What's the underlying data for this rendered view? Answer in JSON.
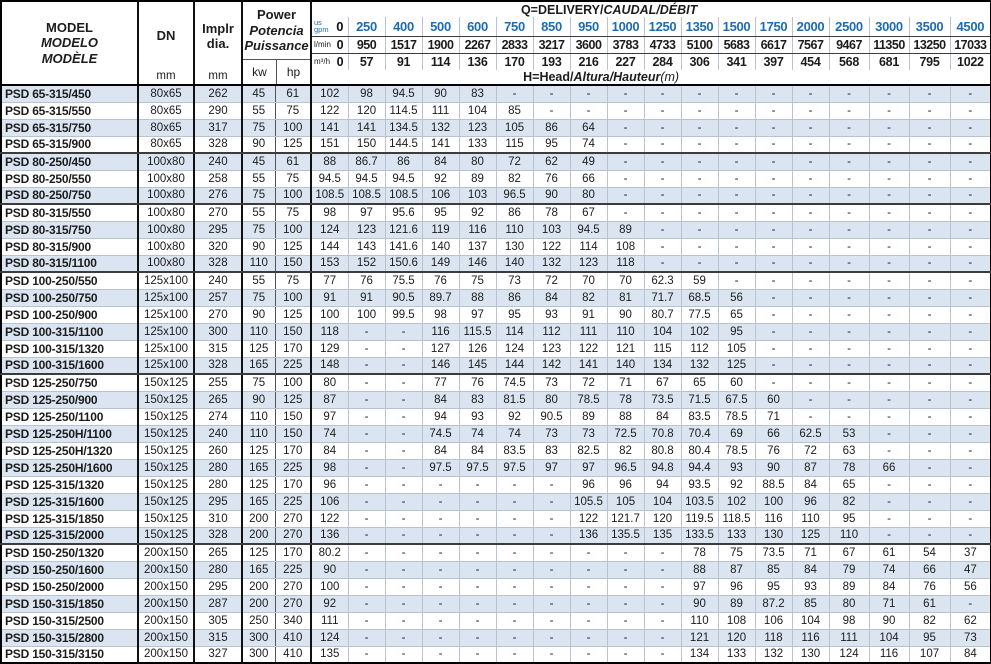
{
  "header": {
    "q_title": {
      "bold": "Q=DELIVERY/",
      "bold_italic": "CAUDAL/DÉBIT"
    },
    "h_title": {
      "bold": "H=Head/",
      "bold_italic": "Altura/Hauteur",
      "suffix": "(m)"
    },
    "model_col": {
      "line1": "MODEL",
      "line2": "MODELO",
      "line3": "MODÈLE"
    },
    "dn_col": {
      "label": "DN",
      "unit": "mm"
    },
    "impeller_col": {
      "line1": "Implr",
      "line2": "dia.",
      "unit": "mm"
    },
    "power_col": {
      "line1": "Power",
      "line2": "Potencia",
      "line3": "Puissance",
      "unit_kw": "kw",
      "unit_hp": "hp"
    },
    "flow_rows": [
      {
        "id": "gpm",
        "unit_lines": [
          "us",
          "gpm"
        ],
        "zero": "0",
        "values": [
          "250",
          "400",
          "500",
          "600",
          "750",
          "850",
          "950",
          "1000",
          "1250",
          "1350",
          "1500",
          "1750",
          "2000",
          "2500",
          "3000",
          "3500",
          "4500"
        ]
      },
      {
        "id": "lmin",
        "unit_lines": [
          "l/min"
        ],
        "zero": "0",
        "values": [
          "950",
          "1517",
          "1900",
          "2267",
          "2833",
          "3217",
          "3600",
          "3783",
          "4733",
          "5100",
          "5683",
          "6617",
          "7567",
          "9467",
          "11350",
          "13250",
          "17033"
        ]
      },
      {
        "id": "m3h",
        "unit_lines": [
          "m³/h"
        ],
        "zero": "0",
        "values": [
          "57",
          "91",
          "114",
          "136",
          "170",
          "193",
          "216",
          "227",
          "284",
          "306",
          "341",
          "397",
          "454",
          "568",
          "681",
          "795",
          "1022"
        ]
      }
    ]
  },
  "rows": [
    {
      "model": "PSD 65-315/450",
      "dn": "80x65",
      "dia": "262",
      "kw": "45",
      "hp": "61",
      "head": [
        "102",
        "98",
        "94.5",
        "90",
        "83",
        "-",
        "-",
        "-",
        "-",
        "-",
        "-",
        "-",
        "-",
        "-",
        "-",
        "-",
        "-",
        "-"
      ]
    },
    {
      "model": "PSD 65-315/550",
      "dn": "80x65",
      "dia": "290",
      "kw": "55",
      "hp": "75",
      "head": [
        "122",
        "120",
        "114.5",
        "111",
        "104",
        "85",
        "-",
        "-",
        "-",
        "-",
        "-",
        "-",
        "-",
        "-",
        "-",
        "-",
        "-",
        "-"
      ]
    },
    {
      "model": "PSD 65-315/750",
      "dn": "80x65",
      "dia": "317",
      "kw": "75",
      "hp": "100",
      "head": [
        "141",
        "141",
        "134.5",
        "132",
        "123",
        "105",
        "86",
        "64",
        "-",
        "-",
        "-",
        "-",
        "-",
        "-",
        "-",
        "-",
        "-",
        "-"
      ]
    },
    {
      "model": "PSD 65-315/900",
      "dn": "80x65",
      "dia": "328",
      "kw": "90",
      "hp": "125",
      "head": [
        "151",
        "150",
        "144.5",
        "141",
        "133",
        "115",
        "95",
        "74",
        "-",
        "-",
        "-",
        "-",
        "-",
        "-",
        "-",
        "-",
        "-",
        "-"
      ]
    },
    {
      "model": "PSD 80-250/450",
      "dn": "100x80",
      "dia": "240",
      "kw": "45",
      "hp": "61",
      "head": [
        "88",
        "86.7",
        "86",
        "84",
        "80",
        "72",
        "62",
        "49",
        "-",
        "-",
        "-",
        "-",
        "-",
        "-",
        "-",
        "-",
        "-",
        "-"
      ]
    },
    {
      "model": "PSD 80-250/550",
      "dn": "100x80",
      "dia": "258",
      "kw": "55",
      "hp": "75",
      "head": [
        "94.5",
        "94.5",
        "94.5",
        "92",
        "89",
        "82",
        "76",
        "66",
        "-",
        "-",
        "-",
        "-",
        "-",
        "-",
        "-",
        "-",
        "-",
        "-"
      ]
    },
    {
      "model": "PSD 80-250/750",
      "dn": "100x80",
      "dia": "276",
      "kw": "75",
      "hp": "100",
      "head": [
        "108.5",
        "108.5",
        "108.5",
        "106",
        "103",
        "96.5",
        "90",
        "80",
        "-",
        "-",
        "-",
        "-",
        "-",
        "-",
        "-",
        "-",
        "-",
        "-"
      ]
    },
    {
      "model": "PSD 80-315/550",
      "dn": "100x80",
      "dia": "270",
      "kw": "55",
      "hp": "75",
      "head": [
        "98",
        "97",
        "95.6",
        "95",
        "92",
        "86",
        "78",
        "67",
        "-",
        "-",
        "-",
        "-",
        "-",
        "-",
        "-",
        "-",
        "-",
        "-"
      ]
    },
    {
      "model": "PSD 80-315/750",
      "dn": "100x80",
      "dia": "295",
      "kw": "75",
      "hp": "100",
      "head": [
        "124",
        "123",
        "121.6",
        "119",
        "116",
        "110",
        "103",
        "94.5",
        "89",
        "-",
        "-",
        "-",
        "-",
        "-",
        "-",
        "-",
        "-",
        "-"
      ]
    },
    {
      "model": "PSD 80-315/900",
      "dn": "100x80",
      "dia": "320",
      "kw": "90",
      "hp": "125",
      "head": [
        "144",
        "143",
        "141.6",
        "140",
        "137",
        "130",
        "122",
        "114",
        "108",
        "-",
        "-",
        "-",
        "-",
        "-",
        "-",
        "-",
        "-",
        "-"
      ]
    },
    {
      "model": "PSD 80-315/1100",
      "dn": "100x80",
      "dia": "328",
      "kw": "110",
      "hp": "150",
      "head": [
        "153",
        "152",
        "150.6",
        "149",
        "146",
        "140",
        "132",
        "123",
        "118",
        "-",
        "-",
        "-",
        "-",
        "-",
        "-",
        "-",
        "-",
        "-"
      ]
    },
    {
      "model": "PSD 100-250/550",
      "dn": "125x100",
      "dia": "240",
      "kw": "55",
      "hp": "75",
      "head": [
        "77",
        "76",
        "75.5",
        "76",
        "75",
        "73",
        "72",
        "70",
        "70",
        "62.3",
        "59",
        "-",
        "-",
        "-",
        "-",
        "-",
        "-",
        "-"
      ]
    },
    {
      "model": "PSD 100-250/750",
      "dn": "125x100",
      "dia": "257",
      "kw": "75",
      "hp": "100",
      "head": [
        "91",
        "91",
        "90.5",
        "89.7",
        "88",
        "86",
        "84",
        "82",
        "81",
        "71.7",
        "68.5",
        "56",
        "-",
        "-",
        "-",
        "-",
        "-",
        "-"
      ]
    },
    {
      "model": "PSD 100-250/900",
      "dn": "125x100",
      "dia": "270",
      "kw": "90",
      "hp": "125",
      "head": [
        "100",
        "100",
        "99.5",
        "98",
        "97",
        "95",
        "93",
        "91",
        "90",
        "80.7",
        "77.5",
        "65",
        "-",
        "-",
        "-",
        "-",
        "-",
        "-"
      ]
    },
    {
      "model": "PSD 100-315/1100",
      "dn": "125x100",
      "dia": "300",
      "kw": "110",
      "hp": "150",
      "head": [
        "118",
        "-",
        "-",
        "116",
        "115.5",
        "114",
        "112",
        "111",
        "110",
        "104",
        "102",
        "95",
        "-",
        "-",
        "-",
        "-",
        "-",
        "-"
      ]
    },
    {
      "model": "PSD 100-315/1320",
      "dn": "125x100",
      "dia": "315",
      "kw": "125",
      "hp": "170",
      "head": [
        "129",
        "-",
        "-",
        "127",
        "126",
        "124",
        "123",
        "122",
        "121",
        "115",
        "112",
        "105",
        "-",
        "-",
        "-",
        "-",
        "-",
        "-"
      ]
    },
    {
      "model": "PSD 100-315/1600",
      "dn": "125x100",
      "dia": "328",
      "kw": "165",
      "hp": "225",
      "head": [
        "148",
        "-",
        "-",
        "146",
        "145",
        "144",
        "142",
        "141",
        "140",
        "134",
        "132",
        "125",
        "-",
        "-",
        "-",
        "-",
        "-",
        "-"
      ]
    },
    {
      "model": "PSD 125-250/750",
      "dn": "150x125",
      "dia": "255",
      "kw": "75",
      "hp": "100",
      "head": [
        "80",
        "-",
        "-",
        "77",
        "76",
        "74.5",
        "73",
        "72",
        "71",
        "67",
        "65",
        "60",
        "-",
        "-",
        "-",
        "-",
        "-",
        "-"
      ]
    },
    {
      "model": "PSD 125-250/900",
      "dn": "150x125",
      "dia": "265",
      "kw": "90",
      "hp": "125",
      "head": [
        "87",
        "-",
        "-",
        "84",
        "83",
        "81.5",
        "80",
        "78.5",
        "78",
        "73.5",
        "71.5",
        "67.5",
        "60",
        "-",
        "-",
        "-",
        "-",
        "-"
      ]
    },
    {
      "model": "PSD 125-250/1100",
      "dn": "150x125",
      "dia": "274",
      "kw": "110",
      "hp": "150",
      "head": [
        "97",
        "-",
        "-",
        "94",
        "93",
        "92",
        "90.5",
        "89",
        "88",
        "84",
        "83.5",
        "78.5",
        "71",
        "-",
        "-",
        "-",
        "-",
        "-"
      ]
    },
    {
      "model": "PSD 125-250H/1100",
      "dn": "150x125",
      "dia": "240",
      "kw": "110",
      "hp": "150",
      "head": [
        "74",
        "-",
        "-",
        "74.5",
        "74",
        "74",
        "73",
        "73",
        "72.5",
        "70.8",
        "70.4",
        "69",
        "66",
        "62.5",
        "53",
        "-",
        "-",
        "-"
      ]
    },
    {
      "model": "PSD 125-250H/1320",
      "dn": "150x125",
      "dia": "260",
      "kw": "125",
      "hp": "170",
      "head": [
        "84",
        "-",
        "-",
        "84",
        "84",
        "83.5",
        "83",
        "82.5",
        "82",
        "80.8",
        "80.4",
        "78.5",
        "76",
        "72",
        "63",
        "-",
        "-",
        "-"
      ]
    },
    {
      "model": "PSD 125-250H/1600",
      "dn": "150x125",
      "dia": "280",
      "kw": "165",
      "hp": "225",
      "head": [
        "98",
        "-",
        "-",
        "97.5",
        "97.5",
        "97.5",
        "97",
        "97",
        "96.5",
        "94.8",
        "94.4",
        "93",
        "90",
        "87",
        "78",
        "66",
        "-",
        "-"
      ]
    },
    {
      "model": "PSD 125-315/1320",
      "dn": "150x125",
      "dia": "280",
      "kw": "125",
      "hp": "170",
      "head": [
        "96",
        "-",
        "-",
        "-",
        "-",
        "-",
        "-",
        "96",
        "96",
        "94",
        "93.5",
        "92",
        "88.5",
        "84",
        "65",
        "-",
        "-",
        "-"
      ]
    },
    {
      "model": "PSD 125-315/1600",
      "dn": "150x125",
      "dia": "295",
      "kw": "165",
      "hp": "225",
      "head": [
        "106",
        "-",
        "-",
        "-",
        "-",
        "-",
        "-",
        "105.5",
        "105",
        "104",
        "103.5",
        "102",
        "100",
        "96",
        "82",
        "-",
        "-",
        "-"
      ]
    },
    {
      "model": "PSD 125-315/1850",
      "dn": "150x125",
      "dia": "310",
      "kw": "200",
      "hp": "270",
      "head": [
        "122",
        "-",
        "-",
        "-",
        "-",
        "-",
        "-",
        "122",
        "121.7",
        "120",
        "119.5",
        "118.5",
        "116",
        "110",
        "95",
        "-",
        "-",
        "-"
      ]
    },
    {
      "model": "PSD 125-315/2000",
      "dn": "150x125",
      "dia": "328",
      "kw": "200",
      "hp": "270",
      "head": [
        "136",
        "-",
        "-",
        "-",
        "-",
        "-",
        "-",
        "136",
        "135.5",
        "135",
        "133.5",
        "133",
        "130",
        "125",
        "110",
        "-",
        "-",
        "-"
      ]
    },
    {
      "model": "PSD 150-250/1320",
      "dn": "200x150",
      "dia": "265",
      "kw": "125",
      "hp": "170",
      "head": [
        "80.2",
        "-",
        "-",
        "-",
        "-",
        "-",
        "-",
        "-",
        "-",
        "-",
        "78",
        "75",
        "73.5",
        "71",
        "67",
        "61",
        "54",
        "37"
      ]
    },
    {
      "model": "PSD 150-250/1600",
      "dn": "200x150",
      "dia": "280",
      "kw": "165",
      "hp": "225",
      "head": [
        "90",
        "-",
        "-",
        "-",
        "-",
        "-",
        "-",
        "-",
        "-",
        "-",
        "88",
        "87",
        "85",
        "84",
        "79",
        "74",
        "66",
        "47"
      ]
    },
    {
      "model": "PSD 150-250/2000",
      "dn": "200x150",
      "dia": "295",
      "kw": "200",
      "hp": "270",
      "head": [
        "100",
        "-",
        "-",
        "-",
        "-",
        "-",
        "-",
        "-",
        "-",
        "-",
        "97",
        "96",
        "95",
        "93",
        "89",
        "84",
        "76",
        "56"
      ]
    },
    {
      "model": "PSD 150-315/1850",
      "dn": "200x150",
      "dia": "287",
      "kw": "200",
      "hp": "270",
      "head": [
        "92",
        "-",
        "-",
        "-",
        "-",
        "-",
        "-",
        "-",
        "-",
        "-",
        "90",
        "89",
        "87.2",
        "85",
        "80",
        "71",
        "61",
        "-"
      ]
    },
    {
      "model": "PSD 150-315/2500",
      "dn": "200x150",
      "dia": "305",
      "kw": "250",
      "hp": "340",
      "head": [
        "111",
        "-",
        "-",
        "-",
        "-",
        "-",
        "-",
        "-",
        "-",
        "-",
        "110",
        "108",
        "106",
        "104",
        "98",
        "90",
        "82",
        "62"
      ]
    },
    {
      "model": "PSD 150-315/2800",
      "dn": "200x150",
      "dia": "315",
      "kw": "300",
      "hp": "410",
      "head": [
        "124",
        "-",
        "-",
        "-",
        "-",
        "-",
        "-",
        "-",
        "-",
        "-",
        "121",
        "120",
        "118",
        "116",
        "111",
        "104",
        "95",
        "73"
      ]
    },
    {
      "model": "PSD 150-315/3150",
      "dn": "200x150",
      "dia": "327",
      "kw": "300",
      "hp": "410",
      "head": [
        "135",
        "-",
        "-",
        "-",
        "-",
        "-",
        "-",
        "-",
        "-",
        "-",
        "134",
        "133",
        "132",
        "130",
        "124",
        "116",
        "107",
        "84"
      ]
    }
  ],
  "group_end_rows": [
    4,
    7,
    11,
    17,
    27
  ],
  "colors": {
    "accent_blue": "#1c6cb5",
    "stripe_blue": "#dbe5f1"
  }
}
